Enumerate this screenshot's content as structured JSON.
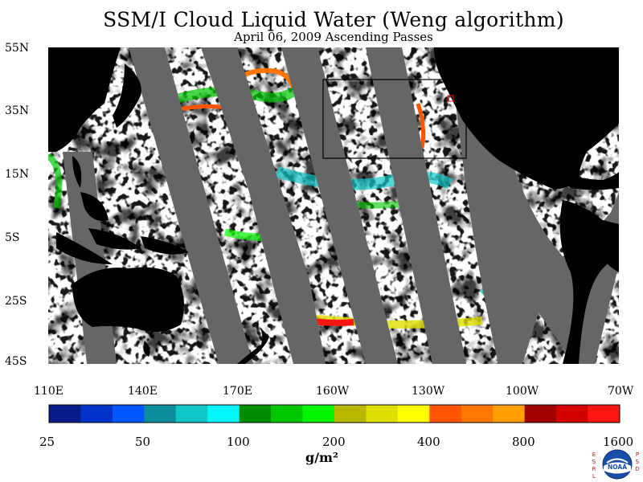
{
  "title": "SSM/I Cloud Liquid Water (Weng algorithm)",
  "subtitle": "April 06, 2009  Ascending Passes",
  "lat_labels": [
    "55N",
    "35N",
    "15N",
    "5S",
    "25S",
    "45S"
  ],
  "lon_labels": [
    "110E",
    "140E",
    "170E",
    "160W",
    "130W",
    "100W",
    "70W"
  ],
  "colorbar": {
    "labels": [
      "25",
      "50",
      "100",
      "200",
      "400",
      "800",
      "1600"
    ],
    "unit": "g/m²",
    "colors": [
      "#071c88",
      "#0033c8",
      "#0056ff",
      "#0e8e9c",
      "#10c6c6",
      "#00f7f7",
      "#008e00",
      "#00c800",
      "#00f600",
      "#b8b800",
      "#e0e000",
      "#ffff00",
      "#ff5500",
      "#ff7700",
      "#ff9f00",
      "#a00000",
      "#d40000",
      "#ff1414"
    ]
  },
  "logo": {
    "text": "NOAA",
    "left": "E S R L",
    "right": "P S D"
  },
  "map_colors": {
    "gap": "#666666",
    "land": "#000000",
    "clear": "#ffffff"
  }
}
